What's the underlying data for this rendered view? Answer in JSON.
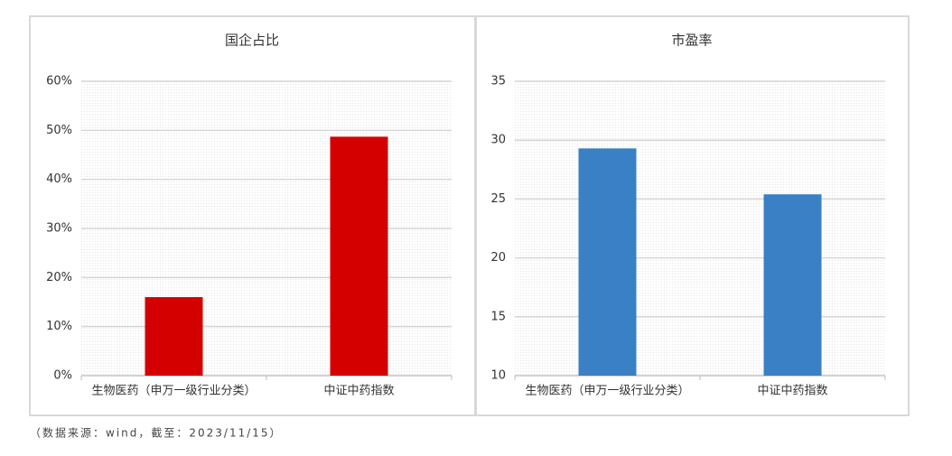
{
  "chart_data": [
    {
      "type": "bar",
      "title": "国企占比",
      "categories": [
        "生物医药（申万一级行业分类）",
        "中证中药指数"
      ],
      "values": [
        16,
        48.7
      ],
      "color": "#d40000",
      "ylim": [
        0,
        60
      ],
      "yticks": [
        {
          "value": 0,
          "label": "0%"
        },
        {
          "value": 10,
          "label": "10%"
        },
        {
          "value": 20,
          "label": "20%"
        },
        {
          "value": 30,
          "label": "30%"
        },
        {
          "value": 40,
          "label": "40%"
        },
        {
          "value": 50,
          "label": "50%"
        },
        {
          "value": 60,
          "label": "60%"
        }
      ],
      "grid": true
    },
    {
      "type": "bar",
      "title": "市盈率",
      "categories": [
        "生物医药（申万一级行业分类）",
        "中证中药指数"
      ],
      "values": [
        29.3,
        25.4
      ],
      "color": "#3a80c4",
      "ylim": [
        10,
        35
      ],
      "yticks": [
        10,
        15,
        20,
        25,
        30,
        35
      ],
      "grid": true
    }
  ],
  "source_note": "（数据来源：wind，截至：2023/11/15）"
}
